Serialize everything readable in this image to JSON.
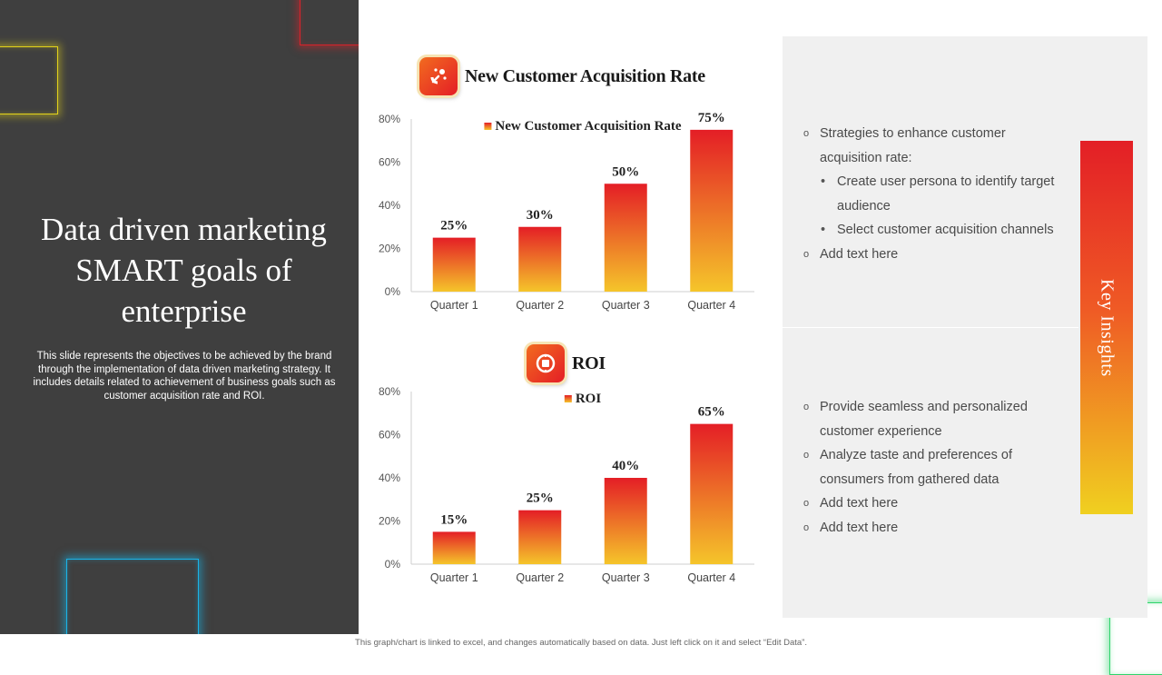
{
  "slide": {
    "title": "Data driven marketing SMART goals of enterprise",
    "description": "This slide represents the objectives to be achieved by the brand through the implementation of data driven marketing strategy. It includes details related to achievement of business goals such as customer acquisition rate and ROI.",
    "footer": "This graph/chart is linked to excel, and changes automatically based on data. Just left click on it and select “Edit Data”."
  },
  "colors": {
    "left_panel": "#3f3f3f",
    "bar_top": "#e41e26",
    "bar_bottom": "#f5c52a",
    "insights_bg": "#f0f0f0"
  },
  "chart_data": [
    {
      "type": "bar",
      "title": "New Customer Acquisition Rate",
      "icon": "magnet-icon",
      "legend": "New Customer Acquisition Rate",
      "categories": [
        "Quarter 1",
        "Quarter 2",
        "Quarter 3",
        "Quarter 4"
      ],
      "values": [
        25,
        30,
        50,
        75
      ],
      "data_labels": [
        "25%",
        "30%",
        "50%",
        "75%"
      ],
      "yticks": [
        "0%",
        "20%",
        "40%",
        "60%",
        "80%"
      ],
      "ylim": [
        0,
        80
      ]
    },
    {
      "type": "bar",
      "title": "ROI",
      "icon": "money-icon",
      "legend": "ROI",
      "categories": [
        "Quarter 1",
        "Quarter 2",
        "Quarter 3",
        "Quarter 4"
      ],
      "values": [
        15,
        25,
        40,
        65
      ],
      "data_labels": [
        "15%",
        "25%",
        "40%",
        "65%"
      ],
      "yticks": [
        "0%",
        "20%",
        "40%",
        "60%",
        "80%"
      ],
      "ylim": [
        0,
        80
      ]
    }
  ],
  "insights": {
    "label": "Key Insights",
    "top": {
      "items": [
        {
          "text": "Strategies to enhance customer acquisition rate:",
          "sub": [
            "Create user persona to identify target audience",
            "Select customer acquisition channels"
          ]
        },
        {
          "text": "Add text here"
        }
      ]
    },
    "bottom": {
      "items": [
        {
          "text": "Provide seamless and personalized customer experience"
        },
        {
          "text": "Analyze taste and preferences of consumers from gathered data"
        },
        {
          "text": "Add text here"
        },
        {
          "text": "Add text here"
        }
      ]
    }
  }
}
